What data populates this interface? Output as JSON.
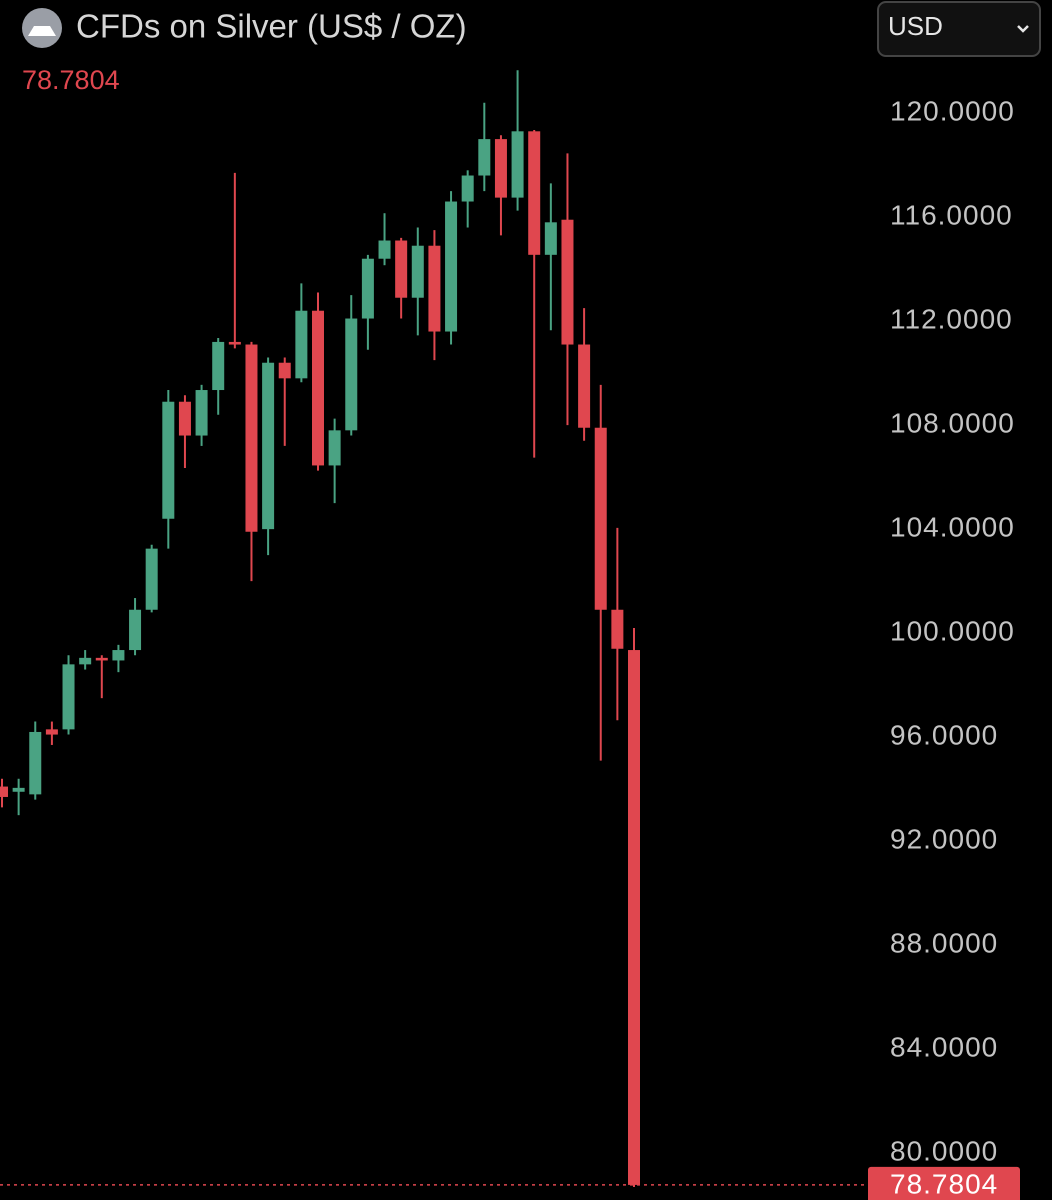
{
  "chart_data": {
    "type": "candlestick",
    "title": "CFDs on Silver (US$ / OZ)",
    "currency": "USD",
    "last_price": 78.7804,
    "up_color": "#4aa383",
    "down_color": "#e0474f",
    "ylim": [
      78.2,
      124.35
    ],
    "yticks": [
      {
        "value": 120,
        "label": "120.0000"
      },
      {
        "value": 116,
        "label": "116.0000"
      },
      {
        "value": 112,
        "label": "112.0000"
      },
      {
        "value": 108,
        "label": "108.0000"
      },
      {
        "value": 104,
        "label": "104.0000"
      },
      {
        "value": 100,
        "label": "100.0000"
      },
      {
        "value": 96,
        "label": "96.0000"
      },
      {
        "value": 92,
        "label": "92.0000"
      },
      {
        "value": 88,
        "label": "88.0000"
      },
      {
        "value": 84,
        "label": "84.0000"
      },
      {
        "value": 80,
        "label": "80.0000"
      }
    ],
    "open": [
      94.1,
      93.9,
      93.8,
      96.3,
      96.3,
      98.8,
      99.05,
      98.95,
      99.35,
      100.9,
      104.4,
      108.9,
      107.6,
      109.35,
      111.2,
      111.1,
      104.0,
      110.4,
      109.8,
      112.4,
      106.45,
      107.8,
      112.1,
      114.4,
      115.1,
      112.9,
      114.9,
      111.6,
      116.6,
      117.6,
      119.0,
      116.75,
      119.3,
      114.55,
      115.9,
      111.1,
      107.9,
      100.9,
      99.35
    ],
    "high": [
      94.4,
      94.4,
      96.6,
      96.6,
      99.15,
      99.35,
      99.15,
      99.55,
      101.35,
      103.4,
      109.35,
      109.15,
      109.55,
      111.35,
      117.7,
      111.2,
      110.6,
      110.6,
      113.45,
      113.1,
      108.25,
      113.0,
      114.55,
      116.15,
      115.2,
      115.6,
      115.5,
      117.0,
      117.8,
      120.4,
      119.15,
      121.65,
      119.35,
      117.3,
      118.45,
      112.5,
      109.55,
      104.05,
      100.2
    ],
    "low": [
      93.3,
      93.0,
      93.6,
      95.7,
      96.1,
      98.6,
      97.5,
      98.5,
      99.15,
      100.8,
      103.25,
      106.35,
      107.2,
      108.4,
      110.95,
      102.0,
      103.0,
      107.2,
      109.65,
      106.25,
      105.0,
      107.6,
      110.9,
      114.15,
      112.1,
      111.45,
      110.5,
      111.1,
      115.6,
      117.0,
      115.3,
      116.25,
      106.75,
      111.65,
      108.0,
      107.4,
      95.1,
      96.65,
      78.7
    ],
    "close": [
      93.7,
      94.05,
      96.2,
      96.1,
      98.8,
      99.05,
      98.95,
      99.35,
      100.9,
      103.25,
      108.9,
      107.6,
      109.35,
      111.2,
      111.1,
      103.9,
      110.4,
      109.8,
      112.4,
      106.45,
      107.8,
      112.1,
      114.4,
      115.1,
      112.9,
      114.9,
      111.6,
      116.6,
      117.6,
      119.0,
      116.75,
      119.3,
      114.55,
      115.8,
      111.1,
      107.9,
      100.9,
      99.4,
      78.7804
    ]
  }
}
